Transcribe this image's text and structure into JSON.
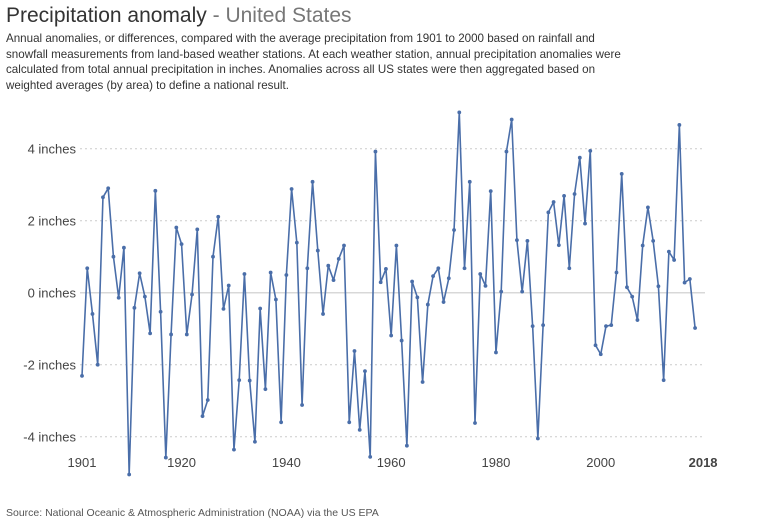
{
  "header": {
    "title": "Precipitation anomaly",
    "subtitle": "- United States",
    "description_lines": [
      "Annual anomalies, or differences, compared with the average precipitation from 1901 to 2000 based on rainfall and",
      "snowfall measurements from land-based weather stations. At each weather station, annual precipitation anomalies were",
      "calculated from total annual precipitation in inches. Anomalies across all US states were then aggregated based on",
      "weighted averages (by area) to define a national result."
    ]
  },
  "source": "Source: National Oceanic & Atmospheric Administration (NOAA) via the US EPA",
  "colors": {
    "line": "#4a6ea9",
    "grid": "#cccccc",
    "zero": "#d8d8d8"
  },
  "chart_data": {
    "type": "line",
    "title": "Precipitation anomaly - United States",
    "xlabel": "",
    "ylabel": "",
    "xlim": [
      1901,
      2018
    ],
    "ylim": [
      -5,
      5
    ],
    "grid": true,
    "yticks": [
      {
        "value": 4,
        "label": "4 inches"
      },
      {
        "value": 2,
        "label": "2 inches"
      },
      {
        "value": 0,
        "label": "0 inches"
      },
      {
        "value": -2,
        "label": "-2 inches"
      },
      {
        "value": -4,
        "label": "-4 inches"
      }
    ],
    "xticks": [
      {
        "value": 1901,
        "label": "1901"
      },
      {
        "value": 1920,
        "label": "1920"
      },
      {
        "value": 1940,
        "label": "1940"
      },
      {
        "value": 1960,
        "label": "1960"
      },
      {
        "value": 1980,
        "label": "1980"
      },
      {
        "value": 2000,
        "label": "2000"
      },
      {
        "value": 2018,
        "label": "2018",
        "bold": true
      }
    ],
    "start_year": 1901,
    "values": [
      -2.31,
      0.68,
      -0.59,
      -2.0,
      2.65,
      2.9,
      1.0,
      -0.14,
      1.25,
      -5.05,
      -0.42,
      0.54,
      -0.11,
      -1.13,
      2.83,
      -0.53,
      -4.58,
      -1.16,
      1.81,
      1.35,
      -1.16,
      -0.05,
      1.76,
      -3.43,
      -2.98,
      1.0,
      2.11,
      -0.45,
      0.2,
      -4.36,
      -2.43,
      0.52,
      -2.44,
      -4.14,
      -0.44,
      -2.68,
      0.56,
      -0.19,
      -3.6,
      0.49,
      2.88,
      1.39,
      -3.12,
      0.68,
      3.08,
      1.17,
      -0.59,
      0.75,
      0.35,
      0.94,
      1.31,
      -3.6,
      -1.62,
      -3.81,
      -2.18,
      -4.56,
      3.92,
      0.29,
      0.66,
      -1.19,
      1.31,
      -1.33,
      -4.25,
      0.31,
      -0.13,
      -2.48,
      -0.33,
      0.46,
      0.68,
      -0.26,
      0.4,
      1.74,
      5.01,
      0.68,
      3.08,
      -3.62,
      0.52,
      0.19,
      2.82,
      -1.66,
      0.03,
      3.92,
      4.81,
      1.46,
      0.03,
      1.44,
      -0.93,
      -4.05,
      -0.9,
      2.23,
      2.52,
      1.32,
      2.69,
      0.68,
      2.74,
      3.75,
      1.92,
      3.94,
      -1.46,
      -1.71,
      -0.93,
      -0.9,
      0.56,
      3.3,
      0.15,
      -0.11,
      -0.76,
      1.31,
      2.37,
      1.44,
      0.18,
      -2.43,
      1.14,
      0.91,
      4.66,
      0.28,
      0.38,
      -0.98
    ]
  }
}
